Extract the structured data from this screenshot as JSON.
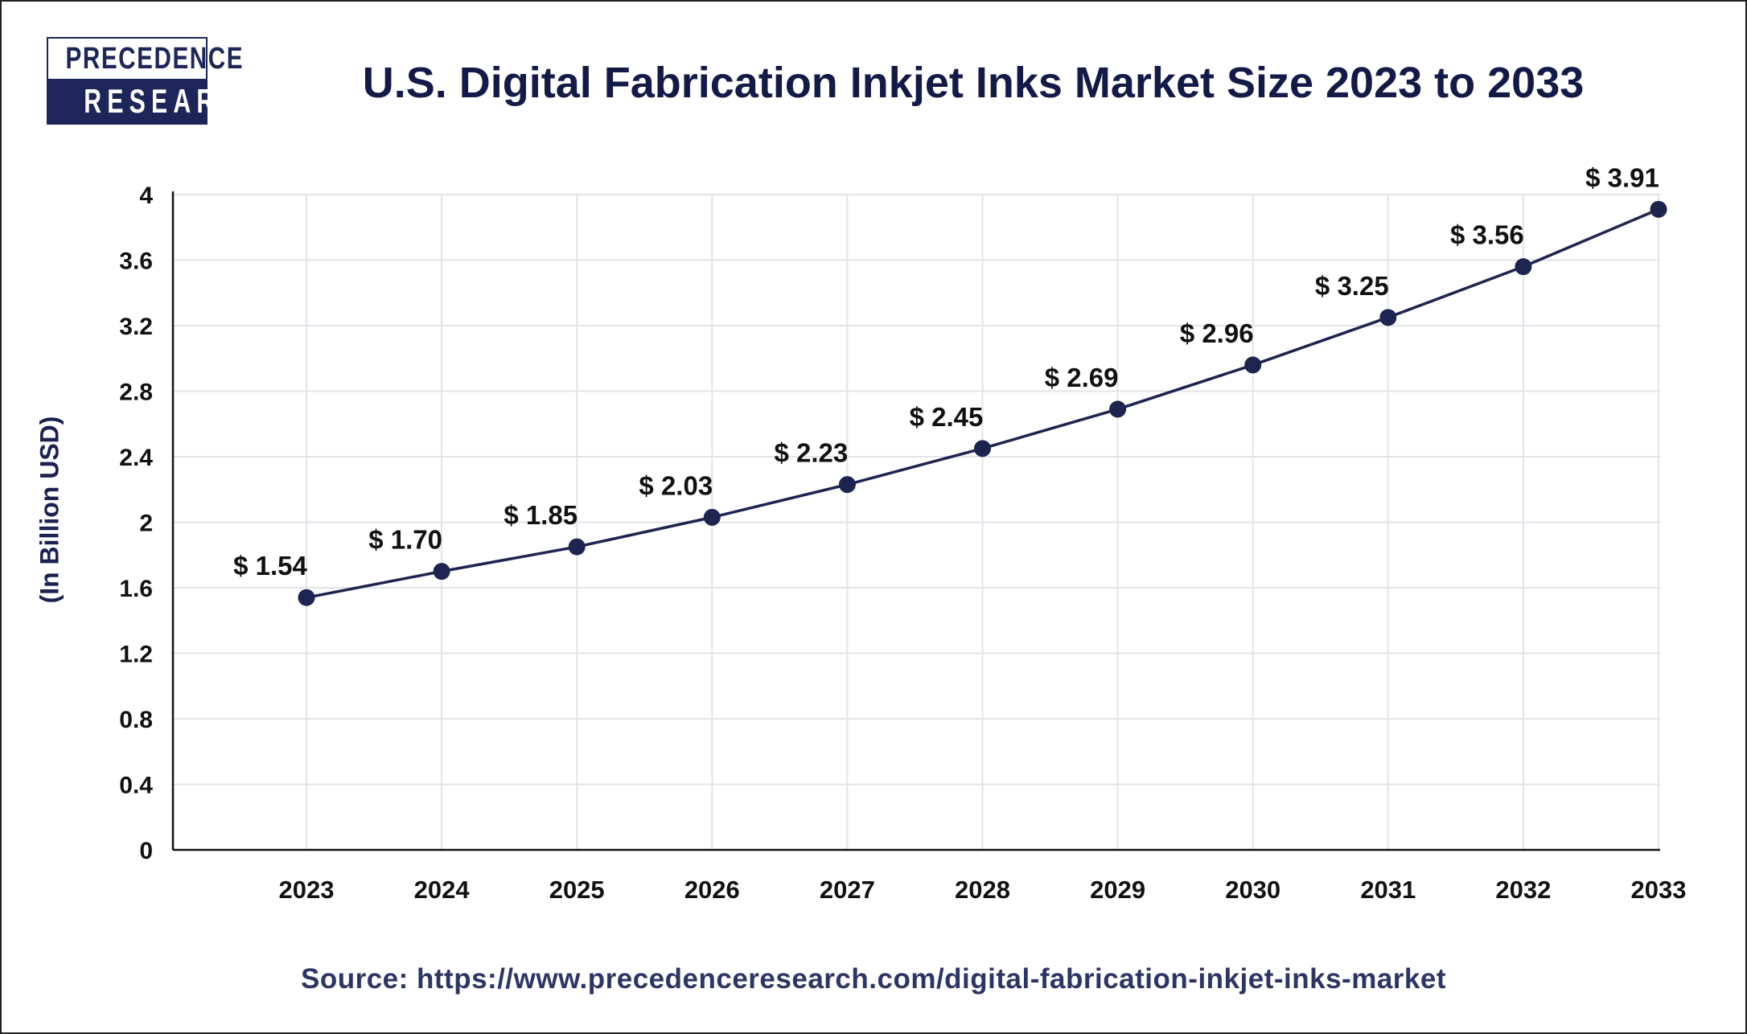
{
  "logo": {
    "line1": "PRECEDENCE",
    "line2": "RESEARCH"
  },
  "source": "Source: https://www.precedenceresearch.com/digital-fabrication-inkjet-inks-market",
  "colors": {
    "line": "#1e2450",
    "grid": "#e2e4ea",
    "text": "#141a48"
  },
  "chart_data": {
    "type": "line",
    "title": "U.S. Digital Fabrication Inkjet Inks Market Size 2023 to 2033",
    "xlabel": "",
    "ylabel": "(In Billion USD)",
    "categories": [
      "2023",
      "2024",
      "2025",
      "2026",
      "2027",
      "2028",
      "2029",
      "2030",
      "2031",
      "2032",
      "2033"
    ],
    "values": [
      1.54,
      1.7,
      1.85,
      2.03,
      2.23,
      2.45,
      2.69,
      2.96,
      3.25,
      3.56,
      3.91
    ],
    "data_labels": [
      "$ 1.54",
      "$ 1.70",
      "$ 1.85",
      "$ 2.03",
      "$ 2.23",
      "$ 2.45",
      "$ 2.69",
      "$ 2.96",
      "$ 3.25",
      "$ 3.56",
      "$ 3.91"
    ],
    "ylim": [
      0,
      4
    ],
    "yticks": [
      "0",
      "0.4",
      "0.8",
      "1.2",
      "1.6",
      "2",
      "2.4",
      "2.8",
      "3.2",
      "3.6",
      "4"
    ],
    "grid": true,
    "legend": "none"
  }
}
